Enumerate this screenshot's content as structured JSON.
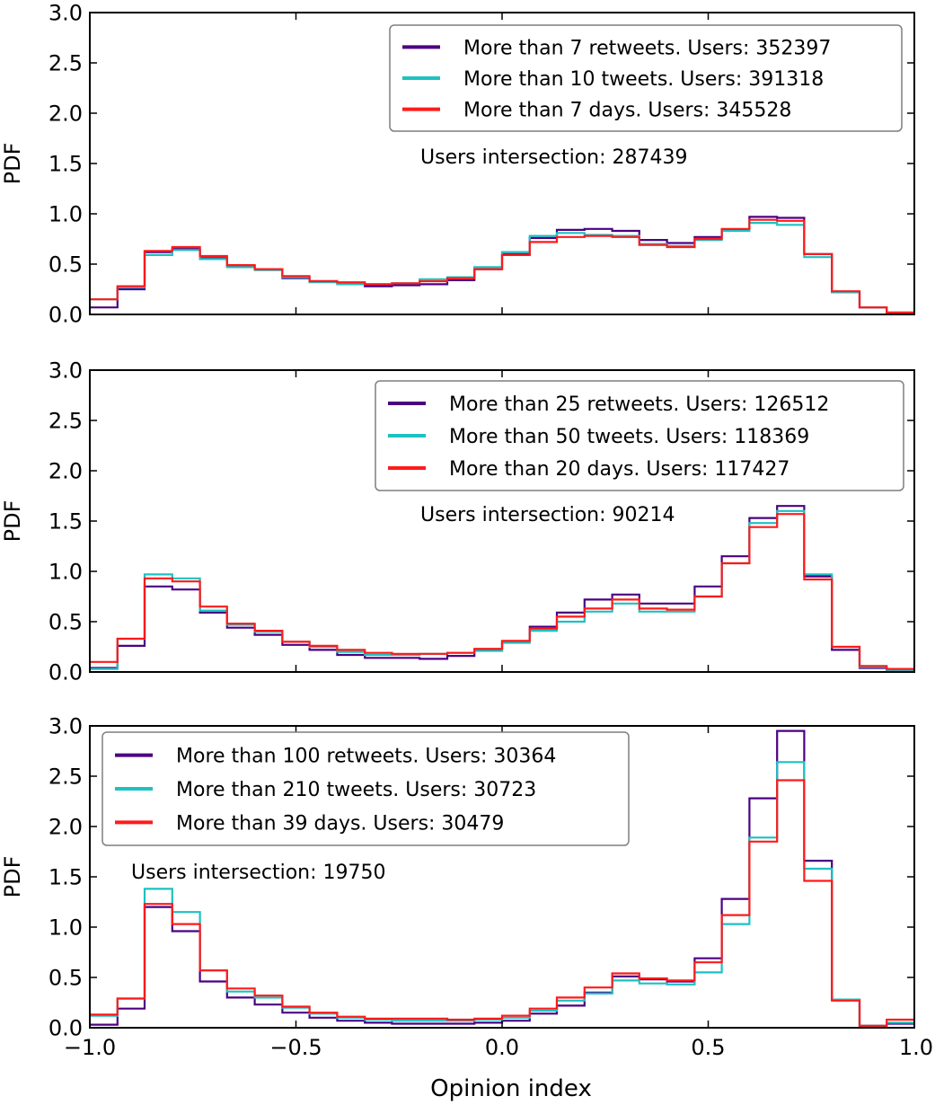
{
  "chart_data": [
    {
      "type": "line",
      "ylabel": "PDF",
      "xlim": [
        -1.0,
        1.0
      ],
      "ylim": [
        0.0,
        3.0
      ],
      "xticks": [
        "−1.0",
        "−0.5",
        "0.0",
        "0.5",
        "1.0"
      ],
      "show_xtick_labels": false,
      "yticks": [
        "0.0",
        "0.5",
        "1.0",
        "1.5",
        "2.0",
        "2.5",
        "3.0"
      ],
      "bin_edges": [
        -1.0,
        -0.933,
        -0.867,
        -0.8,
        -0.733,
        -0.667,
        -0.6,
        -0.533,
        -0.467,
        -0.4,
        -0.333,
        -0.267,
        -0.2,
        -0.133,
        -0.067,
        0.0,
        0.067,
        0.133,
        0.2,
        0.267,
        0.333,
        0.4,
        0.467,
        0.533,
        0.6,
        0.667,
        0.733,
        0.8,
        0.867,
        0.933,
        1.0
      ],
      "legend_position": "top-right",
      "annotation": "Users intersection: 287439",
      "series": [
        {
          "name": "More than 7 retweets. Users: 352397",
          "color": "#4b0082",
          "values": [
            0.07,
            0.25,
            0.62,
            0.65,
            0.56,
            0.48,
            0.45,
            0.36,
            0.33,
            0.31,
            0.28,
            0.29,
            0.3,
            0.34,
            0.45,
            0.6,
            0.76,
            0.84,
            0.85,
            0.83,
            0.74,
            0.71,
            0.77,
            0.84,
            0.97,
            0.96,
            0.6,
            0.22,
            0.07,
            0.01
          ]
        },
        {
          "name": "More than 10 tweets. Users: 391318",
          "color": "#1ec1c1",
          "values": [
            0.15,
            0.27,
            0.59,
            0.64,
            0.55,
            0.47,
            0.44,
            0.37,
            0.32,
            0.3,
            0.3,
            0.31,
            0.35,
            0.37,
            0.47,
            0.62,
            0.78,
            0.81,
            0.79,
            0.78,
            0.7,
            0.68,
            0.74,
            0.83,
            0.91,
            0.89,
            0.57,
            0.22,
            0.07,
            0.02
          ]
        },
        {
          "name": "More than 7 days. Users: 345528",
          "color": "#ff1a1a",
          "values": [
            0.15,
            0.28,
            0.63,
            0.67,
            0.58,
            0.49,
            0.45,
            0.38,
            0.33,
            0.32,
            0.3,
            0.31,
            0.33,
            0.36,
            0.45,
            0.59,
            0.72,
            0.77,
            0.78,
            0.77,
            0.69,
            0.67,
            0.75,
            0.85,
            0.94,
            0.93,
            0.6,
            0.23,
            0.07,
            0.02
          ]
        }
      ]
    },
    {
      "type": "line",
      "ylabel": "PDF",
      "xlim": [
        -1.0,
        1.0
      ],
      "ylim": [
        0.0,
        3.0
      ],
      "xticks": [
        "−1.0",
        "−0.5",
        "0.0",
        "0.5",
        "1.0"
      ],
      "show_xtick_labels": false,
      "yticks": [
        "0.0",
        "0.5",
        "1.0",
        "1.5",
        "2.0",
        "2.5",
        "3.0"
      ],
      "bin_edges": [
        -1.0,
        -0.933,
        -0.867,
        -0.8,
        -0.733,
        -0.667,
        -0.6,
        -0.533,
        -0.467,
        -0.4,
        -0.333,
        -0.267,
        -0.2,
        -0.133,
        -0.067,
        0.0,
        0.067,
        0.133,
        0.2,
        0.267,
        0.333,
        0.4,
        0.467,
        0.533,
        0.6,
        0.667,
        0.733,
        0.8,
        0.867,
        0.933,
        1.0
      ],
      "legend_position": "top-right",
      "annotation": "Users intersection: 90214",
      "series": [
        {
          "name": "More than 25 retweets. Users: 126512",
          "color": "#4b0082",
          "values": [
            0.04,
            0.26,
            0.85,
            0.82,
            0.59,
            0.44,
            0.37,
            0.27,
            0.22,
            0.17,
            0.14,
            0.14,
            0.13,
            0.16,
            0.22,
            0.3,
            0.45,
            0.59,
            0.72,
            0.77,
            0.68,
            0.68,
            0.85,
            1.15,
            1.53,
            1.65,
            0.95,
            0.22,
            0.04,
            0.02
          ]
        },
        {
          "name": "More than 50 tweets. Users: 118369",
          "color": "#1ec1c1",
          "values": [
            0.03,
            0.33,
            0.97,
            0.93,
            0.61,
            0.47,
            0.4,
            0.3,
            0.25,
            0.2,
            0.17,
            0.17,
            0.18,
            0.19,
            0.21,
            0.29,
            0.41,
            0.5,
            0.6,
            0.68,
            0.6,
            0.6,
            0.75,
            1.08,
            1.48,
            1.6,
            0.97,
            0.25,
            0.05,
            0.02
          ]
        },
        {
          "name": "More than 20 days. Users: 117427",
          "color": "#ff1a1a",
          "values": [
            0.1,
            0.33,
            0.93,
            0.9,
            0.65,
            0.48,
            0.41,
            0.3,
            0.26,
            0.22,
            0.19,
            0.18,
            0.18,
            0.19,
            0.23,
            0.31,
            0.43,
            0.55,
            0.63,
            0.72,
            0.63,
            0.62,
            0.75,
            1.08,
            1.44,
            1.57,
            0.92,
            0.25,
            0.06,
            0.03
          ]
        }
      ]
    },
    {
      "type": "line",
      "ylabel": "PDF",
      "xlabel": "Opinion index",
      "xlim": [
        -1.0,
        1.0
      ],
      "ylim": [
        0.0,
        3.0
      ],
      "xticks": [
        "−1.0",
        "−0.5",
        "0.0",
        "0.5",
        "1.0"
      ],
      "show_xtick_labels": true,
      "yticks": [
        "0.0",
        "0.5",
        "1.0",
        "1.5",
        "2.0",
        "2.5",
        "3.0"
      ],
      "bin_edges": [
        -1.0,
        -0.933,
        -0.867,
        -0.8,
        -0.733,
        -0.667,
        -0.6,
        -0.533,
        -0.467,
        -0.4,
        -0.333,
        -0.267,
        -0.2,
        -0.133,
        -0.067,
        0.0,
        0.067,
        0.133,
        0.2,
        0.267,
        0.333,
        0.4,
        0.467,
        0.533,
        0.6,
        0.667,
        0.733,
        0.8,
        0.867,
        0.933,
        1.0
      ],
      "legend_position": "top-left",
      "annotation": "Users intersection: 19750",
      "series": [
        {
          "name": "More than 100 retweets. Users: 30364",
          "color": "#4b0082",
          "values": [
            0.03,
            0.19,
            1.2,
            0.96,
            0.46,
            0.3,
            0.23,
            0.15,
            0.1,
            0.07,
            0.05,
            0.04,
            0.04,
            0.04,
            0.05,
            0.07,
            0.14,
            0.22,
            0.35,
            0.51,
            0.48,
            0.46,
            0.69,
            1.28,
            2.28,
            2.95,
            1.66,
            0.28,
            0.02,
            0.04
          ]
        },
        {
          "name": "More than 210 tweets. Users: 30723",
          "color": "#1ec1c1",
          "values": [
            0.12,
            0.29,
            1.38,
            1.15,
            0.57,
            0.36,
            0.3,
            0.2,
            0.14,
            0.1,
            0.08,
            0.07,
            0.07,
            0.07,
            0.08,
            0.1,
            0.17,
            0.27,
            0.34,
            0.47,
            0.44,
            0.43,
            0.55,
            1.03,
            1.89,
            2.64,
            1.58,
            0.28,
            0.02,
            0.05
          ]
        },
        {
          "name": "More than 39 days. Users: 30479",
          "color": "#ff1a1a",
          "values": [
            0.13,
            0.29,
            1.23,
            1.03,
            0.57,
            0.39,
            0.32,
            0.21,
            0.15,
            0.11,
            0.09,
            0.09,
            0.09,
            0.08,
            0.09,
            0.12,
            0.19,
            0.3,
            0.4,
            0.54,
            0.49,
            0.47,
            0.65,
            1.12,
            1.85,
            2.46,
            1.46,
            0.27,
            0.02,
            0.08
          ]
        }
      ]
    }
  ]
}
